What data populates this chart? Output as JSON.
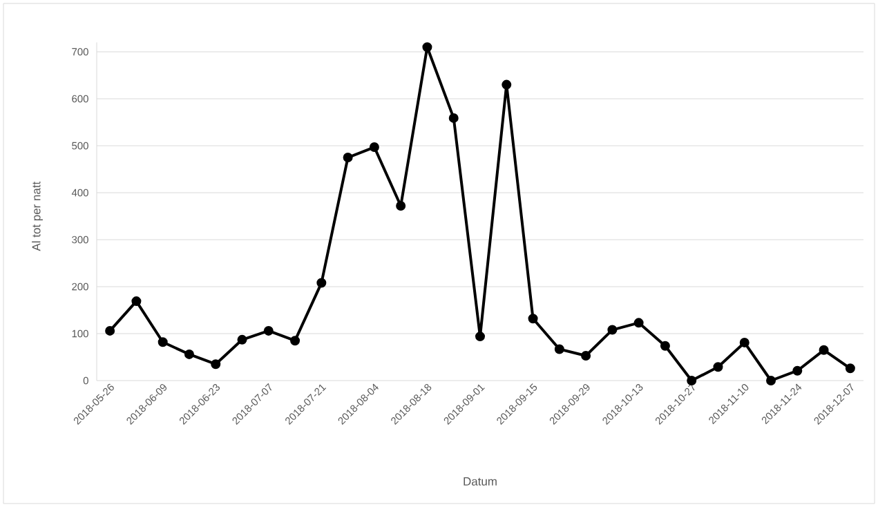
{
  "chart_data": {
    "type": "line",
    "xlabel": "Datum",
    "ylabel": "Al tot per natt",
    "categories": [
      "2018-05-26",
      null,
      "2018-06-09",
      null,
      "2018-06-23",
      null,
      "2018-07-07",
      null,
      "2018-07-21",
      null,
      "2018-08-04",
      null,
      "2018-08-18",
      null,
      "2018-09-01",
      null,
      "2018-09-15",
      null,
      "2018-09-29",
      null,
      "2018-10-13",
      null,
      "2018-10-27",
      null,
      "2018-11-10",
      null,
      "2018-11-24",
      null,
      "2018-12-07"
    ],
    "values": [
      106,
      169,
      82,
      56,
      35,
      87,
      106,
      85,
      208,
      475,
      497,
      372,
      710,
      559,
      94,
      630,
      132,
      67,
      53,
      108,
      123,
      74,
      0,
      29,
      81,
      0,
      21,
      65,
      26
    ],
    "color": "#000000",
    "ylim": [
      0,
      720
    ],
    "yticks": [
      0,
      100,
      200,
      300,
      400,
      500,
      600,
      700
    ],
    "grid": "y",
    "marker": "circle"
  }
}
